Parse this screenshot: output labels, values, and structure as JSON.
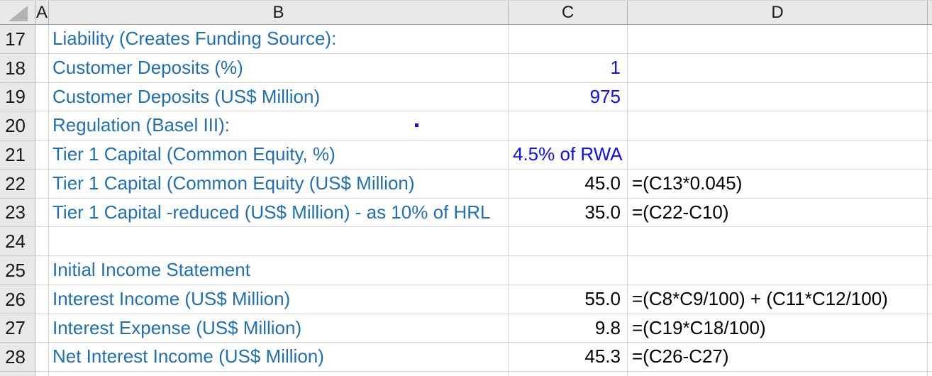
{
  "colors": {
    "label_blue": "#1F6FB5",
    "input_blue": "#0F0FEF",
    "text_black": "#000000",
    "header_bg": "#E8E8E8",
    "header_sep": "#B4B4B4",
    "header_border": "#9B9B9B",
    "gridline": "#D6D6D6",
    "corner_triangle": "#B2B2B2"
  },
  "column_headers": [
    "A",
    "B",
    "C",
    "D"
  ],
  "rows": [
    {
      "num": "17",
      "b": "Liability (Creates Funding Source):",
      "c": "",
      "c_style": "",
      "d": ""
    },
    {
      "num": "18",
      "b": "Customer Deposits (%)",
      "c": "1",
      "c_style": "input",
      "d": ""
    },
    {
      "num": "19",
      "b": "Customer Deposits (US$ Million)",
      "c": "975",
      "c_style": "input",
      "d": ""
    },
    {
      "num": "20",
      "b": "Regulation (Basel III):",
      "c": "",
      "c_style": "",
      "d": "",
      "stray_dot": true
    },
    {
      "num": "21",
      "b": "Tier 1 Capital (Common Equity, %)",
      "c": "4.5% of RWA",
      "c_style": "input-left",
      "d": ""
    },
    {
      "num": "22",
      "b": "Tier 1 Capital (Common Equity (US$ Million)",
      "c": "45.0",
      "c_style": "calc",
      "d": "=(C13*0.045)"
    },
    {
      "num": "23",
      "b": "Tier 1 Capital -reduced (US$ Million) - as 10% of HRL",
      "c": "35.0",
      "c_style": "calc",
      "d": "=(C22-C10)"
    },
    {
      "num": "24",
      "b": "",
      "c": "",
      "c_style": "",
      "d": ""
    },
    {
      "num": "25",
      "b": "Initial Income Statement",
      "c": "",
      "c_style": "",
      "d": ""
    },
    {
      "num": "26",
      "b": "Interest Income (US$ Million)",
      "c": "55.0",
      "c_style": "calc",
      "d": "=(C8*C9/100) + (C11*C12/100)"
    },
    {
      "num": "27",
      "b": "Interest Expense (US$ Million)",
      "c": "9.8",
      "c_style": "calc",
      "d": "=(C19*C18/100)"
    },
    {
      "num": "28",
      "b": "Net Interest Income (US$ Million)",
      "c": "45.3",
      "c_style": "calc",
      "d": "=(C26-C27)"
    }
  ]
}
